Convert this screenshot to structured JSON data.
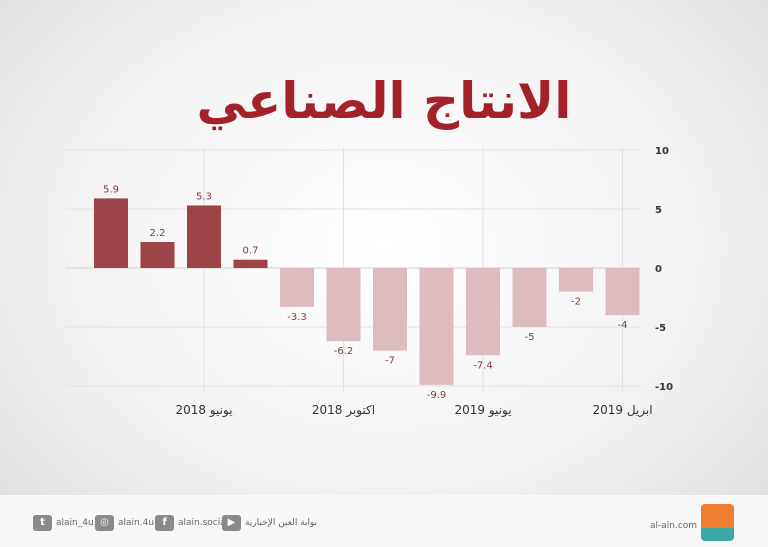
{
  "title": "الانتاج الصناعي",
  "chart_data": {
    "type": "bar",
    "values": [
      5.9,
      2.2,
      5.3,
      0.7,
      -3.3,
      -6.2,
      -7,
      -9.9,
      -7.4,
      -5,
      -2,
      -4
    ],
    "data_labels": [
      "5.9",
      "2.2",
      "5.3",
      "0.7",
      "-3.3",
      "-6.2",
      "-7",
      "-9.9",
      "-7.4",
      "-5",
      "-2",
      "-4"
    ],
    "x_tick_labels": [
      {
        "label": "2018 يونيو",
        "index": 2
      },
      {
        "label": "2018 اكتوبر",
        "index": 5
      },
      {
        "label": "2019 يونيو",
        "index": 8
      },
      {
        "label": "2019 ابريل",
        "index": 11
      }
    ],
    "y_ticks": [
      10,
      5,
      0,
      -5,
      -10
    ],
    "ylim": [
      -10,
      10
    ],
    "y_axis_side": "right",
    "grid": true,
    "colors": {
      "positive": "#9c4447",
      "negative": "#dcbcbe",
      "label": "#8a3b3e"
    }
  },
  "footer": {
    "twitter": "alain_4u",
    "instagram": "alain.4u",
    "facebook": "alain.social",
    "youtube": "بوابة العين الإخبارية",
    "site": "al-ain.com",
    "logo_text": "العين الإخبارية"
  }
}
